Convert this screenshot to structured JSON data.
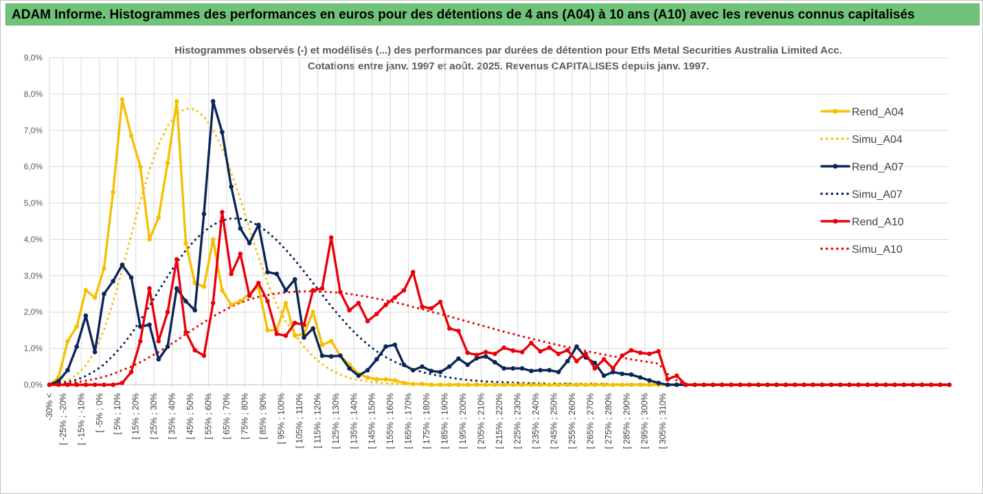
{
  "banner": {
    "title": "ADAM Informe. Histogrammes des performances en euros pour des détentions de 4 ans (A04) à 10 ans (A10) avec les revenus connus capitalisés"
  },
  "colors": {
    "A04": "#f5c000",
    "A07": "#0b2559",
    "A10": "#e8000a",
    "banner_bg": "#6fc47a",
    "grid": "#d9d9d9"
  },
  "chart_data": {
    "type": "line",
    "title_line1": "Histogrammes observés (-) et modélisés (...) des performances par durées de détention pour Etfs Metal Securities Australia Limited Acc.",
    "title_line2": "Cotations entre janv. 1997 et août. 2025. Revenus CAPITALISES depuis janv. 1997.",
    "ylim": [
      0,
      9
    ],
    "y_ticks": [
      "0,0%",
      "1,0%",
      "2,0%",
      "3,0%",
      "4,0%",
      "5,0%",
      "6,0%",
      "7,0%",
      "8,0%",
      "9,0%"
    ],
    "x_labels": [
      "-30% <",
      "[ -25% ; -20%",
      "[ -15% ; -10%",
      "[ -5% ; 0%",
      "[ 5% ; 10%",
      "[ 15% ; 20%",
      "[ 25% ; 30%",
      "[ 35% ; 40%",
      "[ 45% ; 50%",
      "[ 55% ; 60%",
      "[ 65% ; 70%",
      "[ 75% ; 80%",
      "[ 85% ; 90%",
      "[ 95% ; 100%",
      "[ 105% ; 110%",
      "[ 115% ; 120%",
      "[ 125% ; 130%",
      "[ 135% ; 140%",
      "[ 145% ; 150%",
      "[ 155% ; 160%",
      "[ 165% ; 170%",
      "[ 175% ; 180%",
      "[ 185% ; 190%",
      "[ 195% ; 200%",
      "[ 205% ; 210%",
      "[ 215% ; 220%",
      "[ 225% ; 230%",
      "[ 235% ; 240%",
      "[ 245% ; 250%",
      "[ 255% ; 260%",
      "[ 265% ; 270%",
      "[ 275% ; 280%",
      "[ 285% ; 290%",
      "[ 295% ; 300%",
      "[ 305% ; 310%"
    ],
    "legend_position": "right",
    "series": [
      {
        "name": "Rend_A04",
        "key": "A04",
        "style": "solid",
        "values": [
          0.0,
          0.2,
          1.2,
          1.6,
          2.6,
          2.4,
          3.2,
          5.3,
          7.85,
          6.85,
          6.0,
          4.0,
          4.6,
          6.1,
          7.8,
          3.9,
          2.8,
          2.7,
          4.0,
          2.6,
          2.2,
          2.3,
          2.5,
          2.7,
          1.5,
          1.5,
          2.25,
          1.35,
          1.4,
          2.0,
          1.1,
          1.2,
          0.8,
          0.55,
          0.3,
          0.2,
          0.15,
          0.15,
          0.12,
          0.05,
          0.02,
          0.02,
          0.0,
          0.0,
          0.0,
          0.0,
          0.0,
          0.0,
          0.0,
          0.0,
          0.0,
          0.0,
          0.0,
          0.0,
          0.0,
          0.0,
          0.0,
          0.0,
          0.0,
          0.0,
          0.0,
          0.0,
          0.0,
          0.0,
          0.0,
          0.0,
          0.0,
          0.0,
          0.0,
          0.0,
          0.0,
          0.0,
          0.0,
          0.0,
          0.0,
          0.0,
          0.0,
          0.0,
          0.0,
          0.0,
          0.0,
          0.0,
          0.0,
          0.0,
          0.0,
          0.0,
          0.0,
          0.0,
          0.0,
          0.0,
          0.0,
          0.0,
          0.0,
          0.0,
          0.0,
          0.0,
          0.0,
          0.0,
          0.0,
          0.0
        ]
      },
      {
        "name": "Simu_A04",
        "key": "A04",
        "style": "dotted",
        "values": [
          0.02,
          0.05,
          0.12,
          0.27,
          0.53,
          0.93,
          1.51,
          2.27,
          3.16,
          4.12,
          5.06,
          5.91,
          6.6,
          7.12,
          7.45,
          7.6,
          7.58,
          7.38,
          7.02,
          6.5,
          5.85,
          5.1,
          4.3,
          3.52,
          2.8,
          2.2,
          1.75,
          1.38,
          1.05,
          0.78,
          0.57,
          0.4,
          0.28,
          0.19,
          0.13,
          0.09,
          0.06,
          0.04,
          0.03,
          0.02,
          0.01,
          0.01,
          0.01,
          0.0,
          0.0,
          0.0,
          0.0,
          0.0,
          0.0,
          0.0,
          0.0,
          0.0,
          0.0,
          0.0,
          0.0,
          0.0,
          0.0,
          0.0,
          0.0,
          0.0,
          0.0,
          0.0,
          0.0,
          0.0,
          0.0,
          0.0,
          0.0,
          0.0,
          0.0,
          0.0,
          0.0,
          0.0,
          0.0,
          0.0,
          0.0,
          0.0,
          0.0,
          0.0,
          0.0,
          0.0,
          0.0,
          0.0,
          0.0,
          0.0,
          0.0,
          0.0,
          0.0,
          0.0,
          0.0,
          0.0,
          0.0,
          0.0,
          0.0,
          0.0,
          0.0,
          0.0,
          0.0,
          0.0,
          0.0,
          0.0
        ]
      },
      {
        "name": "Rend_A07",
        "key": "A07",
        "style": "solid",
        "values": [
          0.0,
          0.1,
          0.4,
          1.05,
          1.9,
          0.9,
          2.5,
          2.85,
          3.3,
          2.95,
          1.6,
          1.65,
          0.7,
          1.05,
          2.65,
          2.3,
          2.05,
          4.7,
          7.8,
          6.95,
          5.45,
          4.3,
          3.9,
          4.4,
          3.1,
          3.05,
          2.6,
          2.9,
          1.3,
          1.55,
          0.8,
          0.78,
          0.8,
          0.45,
          0.25,
          0.4,
          0.7,
          1.05,
          1.1,
          0.55,
          0.4,
          0.5,
          0.38,
          0.35,
          0.5,
          0.72,
          0.55,
          0.73,
          0.78,
          0.62,
          0.45,
          0.45,
          0.45,
          0.38,
          0.4,
          0.4,
          0.35,
          0.65,
          1.05,
          0.75,
          0.6,
          0.25,
          0.35,
          0.3,
          0.28,
          0.2,
          0.12,
          0.05,
          0.0,
          0.0,
          0.0,
          0.0,
          0.0,
          0.0,
          0.0,
          0.0,
          0.0,
          0.0,
          0.0,
          0.0,
          0.0,
          0.0,
          0.0,
          0.0,
          0.0,
          0.0,
          0.0,
          0.0,
          0.0,
          0.0,
          0.0,
          0.0,
          0.0,
          0.0,
          0.0,
          0.0,
          0.0,
          0.0,
          0.0,
          0.0
        ]
      },
      {
        "name": "Simu_A07",
        "key": "A07",
        "style": "dotted",
        "values": [
          0.02,
          0.04,
          0.08,
          0.14,
          0.24,
          0.38,
          0.56,
          0.8,
          1.08,
          1.4,
          1.77,
          2.17,
          2.58,
          2.98,
          3.36,
          3.7,
          3.98,
          4.22,
          4.4,
          4.52,
          4.58,
          4.57,
          4.5,
          4.38,
          4.2,
          3.98,
          3.72,
          3.43,
          3.12,
          2.8,
          2.48,
          2.16,
          1.86,
          1.58,
          1.33,
          1.11,
          0.92,
          0.76,
          0.63,
          0.52,
          0.43,
          0.35,
          0.29,
          0.24,
          0.2,
          0.16,
          0.13,
          0.11,
          0.09,
          0.08,
          0.07,
          0.06,
          0.05,
          0.04,
          0.04,
          0.03,
          0.03,
          0.03,
          0.02,
          0.02,
          0.02,
          0.02,
          0.01,
          0.01,
          0.01,
          0.01,
          0.01,
          0.01,
          0.01,
          0.01,
          0.0,
          0.0,
          0.0,
          0.0,
          0.0,
          0.0,
          0.0,
          0.0,
          0.0,
          0.0,
          0.0,
          0.0,
          0.0,
          0.0,
          0.0,
          0.0,
          0.0,
          0.0,
          0.0,
          0.0,
          0.0,
          0.0,
          0.0,
          0.0,
          0.0,
          0.0,
          0.0,
          0.0,
          0.0,
          0.0
        ]
      },
      {
        "name": "Rend_A10",
        "key": "A10",
        "style": "solid",
        "values": [
          0.0,
          0.0,
          0.0,
          0.0,
          0.0,
          0.0,
          0.0,
          0.0,
          0.05,
          0.35,
          1.2,
          2.65,
          1.2,
          2.0,
          3.45,
          1.45,
          0.95,
          0.8,
          2.25,
          4.75,
          3.05,
          3.6,
          2.45,
          2.8,
          2.3,
          1.4,
          1.35,
          1.7,
          1.65,
          2.6,
          2.65,
          4.05,
          2.55,
          2.05,
          2.25,
          1.75,
          1.95,
          2.2,
          2.4,
          2.6,
          3.1,
          2.15,
          2.1,
          2.28,
          1.55,
          1.48,
          0.88,
          0.82,
          0.9,
          0.85,
          1.02,
          0.94,
          0.9,
          1.15,
          0.92,
          1.02,
          0.85,
          0.95,
          0.65,
          0.85,
          0.45,
          0.7,
          0.45,
          0.8,
          0.95,
          0.88,
          0.85,
          0.92,
          0.15,
          0.25,
          0.0,
          0.0,
          0.0,
          0.0,
          0.0,
          0.0,
          0.0,
          0.0,
          0.0,
          0.0,
          0.0,
          0.0,
          0.0,
          0.0,
          0.0,
          0.0,
          0.0,
          0.0,
          0.0,
          0.0,
          0.0,
          0.0,
          0.0,
          0.0,
          0.0,
          0.0,
          0.0,
          0.0,
          0.0,
          0.0
        ]
      },
      {
        "name": "Simu_A10",
        "key": "A10",
        "style": "dotted",
        "values": [
          0.01,
          0.02,
          0.04,
          0.07,
          0.11,
          0.16,
          0.22,
          0.3,
          0.4,
          0.5,
          0.62,
          0.76,
          0.9,
          1.06,
          1.22,
          1.39,
          1.56,
          1.72,
          1.88,
          2.02,
          2.15,
          2.26,
          2.35,
          2.42,
          2.47,
          2.51,
          2.54,
          2.56,
          2.57,
          2.57,
          2.56,
          2.55,
          2.53,
          2.5,
          2.46,
          2.42,
          2.37,
          2.32,
          2.27,
          2.21,
          2.14,
          2.08,
          2.01,
          1.95,
          1.88,
          1.81,
          1.74,
          1.67,
          1.6,
          1.53,
          1.46,
          1.4,
          1.33,
          1.27,
          1.21,
          1.15,
          1.09,
          1.04,
          0.98,
          0.93,
          0.88,
          0.83,
          0.78,
          0.74,
          0.7,
          0.66,
          0.62,
          0.58,
          0.3,
          0.12,
          0.0,
          0.0,
          0.0,
          0.0,
          0.0,
          0.0,
          0.0,
          0.0,
          0.0,
          0.0,
          0.0,
          0.0,
          0.0,
          0.0,
          0.0,
          0.0,
          0.0,
          0.0,
          0.0,
          0.0,
          0.0,
          0.0,
          0.0,
          0.0,
          0.0,
          0.0,
          0.0,
          0.0,
          0.0,
          0.0
        ]
      }
    ]
  }
}
